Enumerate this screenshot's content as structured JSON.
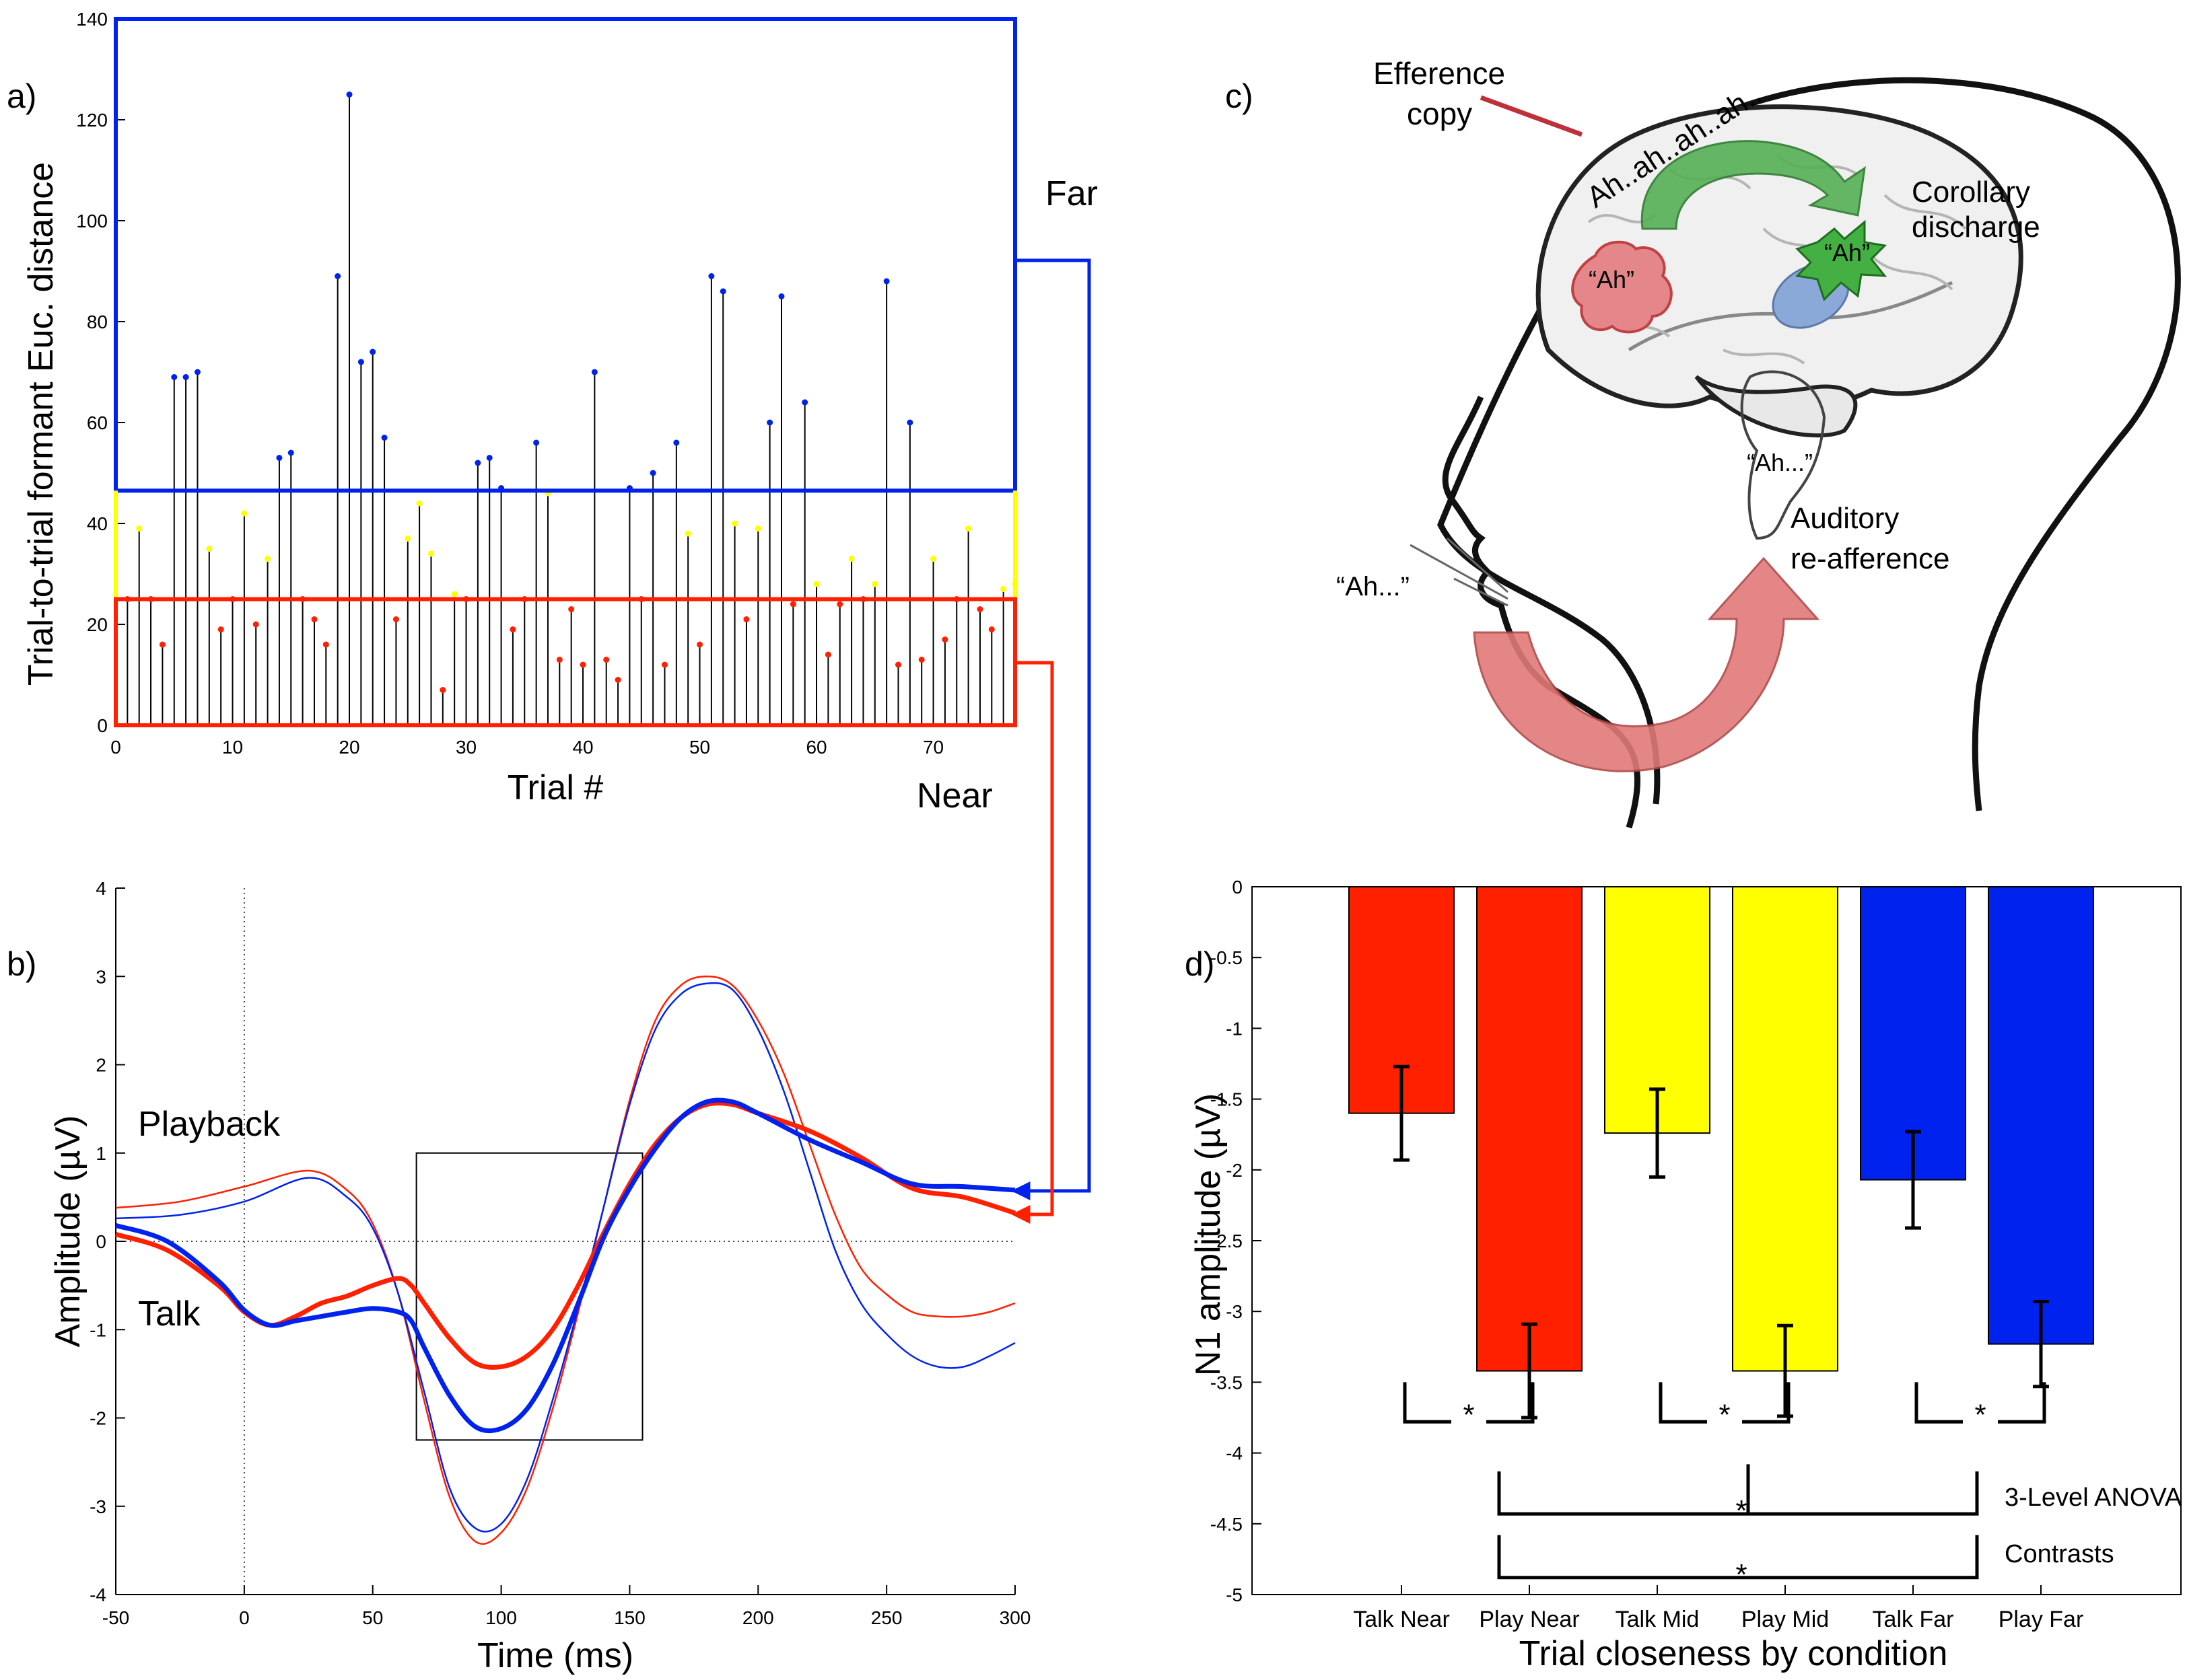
{
  "panels": {
    "a": {
      "label": "a)"
    },
    "b": {
      "label": "b)"
    },
    "c": {
      "label": "c)"
    },
    "d": {
      "label": "d)"
    }
  },
  "colors": {
    "red": "#ff2000",
    "blue": "#0022ee",
    "yellow": "#ffff00",
    "stem": "#000000"
  },
  "annotations": {
    "far": "Far",
    "near": "Near",
    "playback": "Playback",
    "talk": "Talk"
  },
  "brain": {
    "efference": "Efference",
    "copy": "copy",
    "ah_chain": "Ah..ah..ah..ah..",
    "corollary": "Corollary",
    "discharge": "discharge",
    "ah_red": "“Ah”",
    "ah_green": "“Ah”",
    "ah_temporal": "“Ah...”",
    "auditory": "Auditory",
    "reafference": "re-afference",
    "ah_mouth": "“Ah...”"
  },
  "chart_data": [
    {
      "panel": "a",
      "type": "scatter",
      "style": "stem",
      "xlabel": "Trial #",
      "ylabel": "Trial-to-trial formant Euc. distance",
      "xlim": [
        0,
        77
      ],
      "ylim": [
        0,
        140
      ],
      "xticks": [
        0,
        10,
        20,
        30,
        40,
        50,
        60,
        70
      ],
      "yticks": [
        0,
        20,
        40,
        60,
        80,
        100,
        120,
        140
      ],
      "near_threshold": 25,
      "far_threshold": 46.5,
      "x": [
        1,
        2,
        3,
        4,
        5,
        6,
        7,
        8,
        9,
        10,
        11,
        12,
        13,
        14,
        15,
        16,
        17,
        18,
        19,
        20,
        21,
        22,
        23,
        24,
        25,
        26,
        27,
        28,
        29,
        30,
        31,
        32,
        33,
        34,
        35,
        36,
        37,
        38,
        39,
        40,
        41,
        42,
        43,
        44,
        45,
        46,
        47,
        48,
        49,
        50,
        51,
        52,
        53,
        54,
        55,
        56,
        57,
        58,
        59,
        60,
        61,
        62,
        63,
        64,
        65,
        66,
        67,
        68,
        69,
        70,
        71,
        72,
        73,
        74,
        75,
        76,
        77
      ],
      "values": [
        25,
        39,
        25,
        16,
        69,
        69,
        70,
        35,
        19,
        25,
        42,
        20,
        33,
        53,
        54,
        25,
        21,
        16,
        89,
        125,
        72,
        74,
        57,
        21,
        37,
        44,
        34,
        7,
        26,
        25,
        52,
        53,
        47,
        19,
        25,
        56,
        46,
        13,
        23,
        12,
        70,
        13,
        9,
        47,
        25,
        50,
        12,
        56,
        38,
        16,
        89,
        86,
        40,
        21,
        39,
        60,
        85,
        24,
        64,
        28,
        14,
        24,
        33,
        25,
        28,
        88,
        12,
        60,
        13,
        33,
        17,
        25,
        39,
        23,
        19,
        27,
        28
      ]
    },
    {
      "panel": "b",
      "type": "line",
      "xlabel": "Time (ms)",
      "ylabel": "Amplitude (µV)",
      "xlim": [
        -50,
        300
      ],
      "ylim": [
        -4,
        4
      ],
      "xticks": [
        -50,
        0,
        50,
        100,
        150,
        200,
        250,
        300
      ],
      "yticks": [
        -4,
        -3,
        -2,
        -1,
        0,
        1,
        2,
        3,
        4
      ],
      "analysis_window": {
        "x": [
          67,
          155
        ],
        "y": [
          -2.25,
          1.0
        ]
      },
      "series": [
        {
          "condition": "Playback",
          "group": "Near",
          "color": "#ff2000",
          "width": "thin",
          "x": [
            -50,
            -25,
            0,
            25,
            40,
            50,
            60,
            70,
            80,
            90,
            100,
            110,
            120,
            130,
            140,
            150,
            160,
            170,
            180,
            190,
            200,
            210,
            220,
            230,
            240,
            250,
            260,
            270,
            280,
            290,
            300
          ],
          "values": [
            0.38,
            0.45,
            0.62,
            0.8,
            0.58,
            0.2,
            -0.6,
            -1.8,
            -2.9,
            -3.4,
            -3.3,
            -2.8,
            -1.9,
            -0.8,
            0.4,
            1.6,
            2.5,
            2.9,
            3.0,
            2.9,
            2.5,
            1.9,
            1.1,
            0.3,
            -0.3,
            -0.6,
            -0.8,
            -0.85,
            -0.85,
            -0.8,
            -0.7
          ]
        },
        {
          "condition": "Playback",
          "group": "Far",
          "color": "#0022ee",
          "width": "thin",
          "x": [
            -50,
            -25,
            0,
            25,
            40,
            50,
            60,
            70,
            80,
            90,
            100,
            110,
            120,
            130,
            140,
            150,
            160,
            170,
            180,
            190,
            200,
            210,
            220,
            230,
            240,
            250,
            260,
            270,
            280,
            290,
            300
          ],
          "values": [
            0.26,
            0.3,
            0.45,
            0.72,
            0.5,
            0.15,
            -0.6,
            -1.7,
            -2.8,
            -3.25,
            -3.2,
            -2.7,
            -1.8,
            -0.75,
            0.4,
            1.55,
            2.4,
            2.8,
            2.92,
            2.85,
            2.4,
            1.7,
            0.8,
            -0.1,
            -0.7,
            -1.05,
            -1.3,
            -1.42,
            -1.42,
            -1.3,
            -1.15
          ]
        },
        {
          "condition": "Talk",
          "group": "Near",
          "color": "#ff2000",
          "width": "thick",
          "x": [
            -50,
            -30,
            -10,
            0,
            10,
            20,
            30,
            40,
            50,
            60,
            65,
            70,
            80,
            90,
            100,
            110,
            120,
            130,
            140,
            150,
            160,
            170,
            180,
            190,
            200,
            220,
            240,
            260,
            280,
            300
          ],
          "values": [
            0.08,
            -0.1,
            -0.5,
            -0.8,
            -0.95,
            -0.85,
            -0.7,
            -0.62,
            -0.5,
            -0.42,
            -0.5,
            -0.7,
            -1.1,
            -1.38,
            -1.42,
            -1.3,
            -1.0,
            -0.5,
            0.1,
            0.65,
            1.1,
            1.4,
            1.55,
            1.55,
            1.45,
            1.25,
            0.95,
            0.6,
            0.5,
            0.32
          ]
        },
        {
          "condition": "Talk",
          "group": "Far",
          "color": "#0022ee",
          "width": "thick",
          "x": [
            -50,
            -30,
            -10,
            0,
            10,
            20,
            30,
            40,
            50,
            60,
            65,
            70,
            80,
            90,
            100,
            110,
            120,
            130,
            140,
            150,
            160,
            170,
            180,
            190,
            200,
            220,
            240,
            260,
            280,
            300
          ],
          "values": [
            0.18,
            0.0,
            -0.45,
            -0.78,
            -0.95,
            -0.9,
            -0.85,
            -0.8,
            -0.76,
            -0.8,
            -0.9,
            -1.2,
            -1.75,
            -2.1,
            -2.12,
            -1.9,
            -1.4,
            -0.7,
            0.05,
            0.6,
            1.05,
            1.4,
            1.58,
            1.58,
            1.45,
            1.15,
            0.9,
            0.65,
            0.62,
            0.58
          ]
        }
      ]
    },
    {
      "panel": "d",
      "type": "bar",
      "xlabel": "Trial closeness by condition",
      "ylabel": "N1 amplitude (µV)",
      "ylim": [
        -5,
        0
      ],
      "yticks": [
        0,
        -0.5,
        -1,
        -1.5,
        -2,
        -2.5,
        -3,
        -3.5,
        -4,
        -4.5,
        -5
      ],
      "categories": [
        "Talk Near",
        "Play Near",
        "Talk Mid",
        "Play Mid",
        "Talk Far",
        "Play Far"
      ],
      "values": [
        -1.6,
        -3.42,
        -1.74,
        -3.42,
        -2.07,
        -3.23
      ],
      "errors": [
        0.33,
        0.33,
        0.31,
        0.32,
        0.34,
        0.3
      ],
      "bar_colors": [
        "#ff2000",
        "#ff2000",
        "#ffff00",
        "#ffff00",
        "#0022ee",
        "#0022ee"
      ],
      "significance": [
        {
          "between": [
            "Talk Near",
            "Play Near"
          ],
          "mark": "*"
        },
        {
          "between": [
            "Talk Mid",
            "Play Mid"
          ],
          "mark": "*"
        },
        {
          "between": [
            "Talk Far",
            "Play Far"
          ],
          "mark": "*"
        }
      ],
      "anova_label": "3-Level ANOVA",
      "anova_mark": "*",
      "contrasts_label": "Contrasts",
      "contrasts_mark": "*"
    }
  ]
}
